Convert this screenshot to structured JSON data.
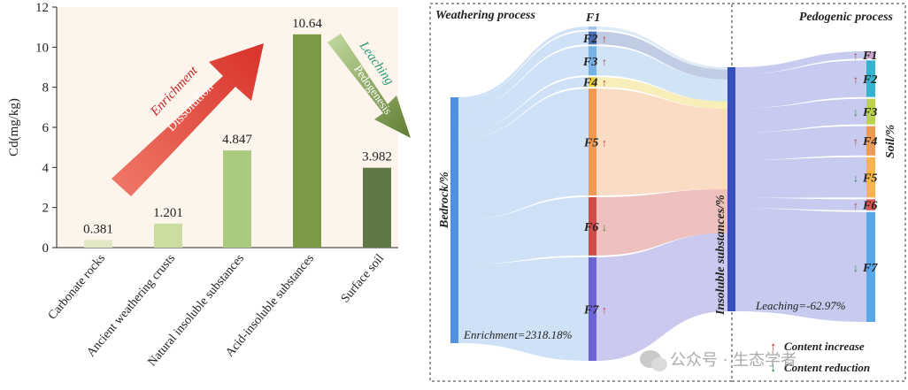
{
  "chart_data": [
    {
      "type": "bar",
      "categories": [
        "Carbonate rocks",
        "Ancient weathering crusts",
        "Natural insoluble substances",
        "Acid-insoluble substances",
        "Surface soil"
      ],
      "values": [
        0.381,
        1.201,
        4.847,
        10.64,
        3.982
      ],
      "value_labels": [
        "0.381",
        "1.201",
        "4.847",
        "10.64",
        "3.982"
      ],
      "ylabel": "Cd(mg/kg)",
      "ylim": [
        0,
        12
      ],
      "yticks": [
        0,
        2,
        4,
        6,
        8,
        10,
        12
      ],
      "grid": false,
      "colors": [
        "#dfe8c3",
        "#c9dea0",
        "#a9cb7f",
        "#7b9a45",
        "#5f7845"
      ],
      "annotations": {
        "arrow_up_top": "Enrichment",
        "arrow_up_bottom": "Dissolution",
        "arrow_down_top": "Leaching",
        "arrow_down_bottom": "Pedogenesis"
      }
    },
    {
      "type": "sankey",
      "sections": {
        "left": "Weathering process",
        "right": "Pedogenic process"
      },
      "stages": [
        "Bedrock/%",
        "Insoluble substances/%",
        "Soil/%"
      ],
      "nodes_mid": [
        "F1",
        "F2",
        "F3",
        "F4",
        "F5",
        "F6",
        "F7"
      ],
      "nodes_right": [
        "F1",
        "F2",
        "F3",
        "F4",
        "F5",
        "F6",
        "F7"
      ],
      "mid_trend": [
        "",
        "up",
        "up",
        "up",
        "up",
        "down",
        "up"
      ],
      "right_trend": [
        "up",
        "up",
        "down",
        "up",
        "down",
        "up",
        "down"
      ],
      "mid_share": [
        1,
        4,
        9,
        3,
        33,
        18,
        32
      ],
      "right_share": [
        2,
        10,
        7,
        8,
        11,
        3,
        30
      ],
      "enrichment_label": "Enrichment=2318.18%",
      "leaching_label": "Leaching=-62.97%",
      "legend": {
        "increase": "Content increase",
        "reduction": "Content reduction"
      },
      "colors": {
        "bedrock": "#4f91de",
        "insoluble": "#3550b8",
        "up_arrow": "#c4282d",
        "down_arrow": "#1f8a40",
        "F1": "#9fc2e8",
        "F2": "#4a6db3",
        "F3": "#77b2e6",
        "F4": "#e9cd3a",
        "F5": "#ee9a52",
        "F6": "#cf4c49",
        "F7": "#6c63d4",
        "soil_F1": "#c9a4c8",
        "soil_F2": "#36b4cf",
        "soil_F3": "#bad347",
        "soil_F4": "#ee9a52",
        "soil_F5": "#f6b54c",
        "soil_F6": "#d85a58",
        "soil_F7": "#5aa7e8"
      }
    }
  ],
  "watermark": "公众号 · 生态学者"
}
